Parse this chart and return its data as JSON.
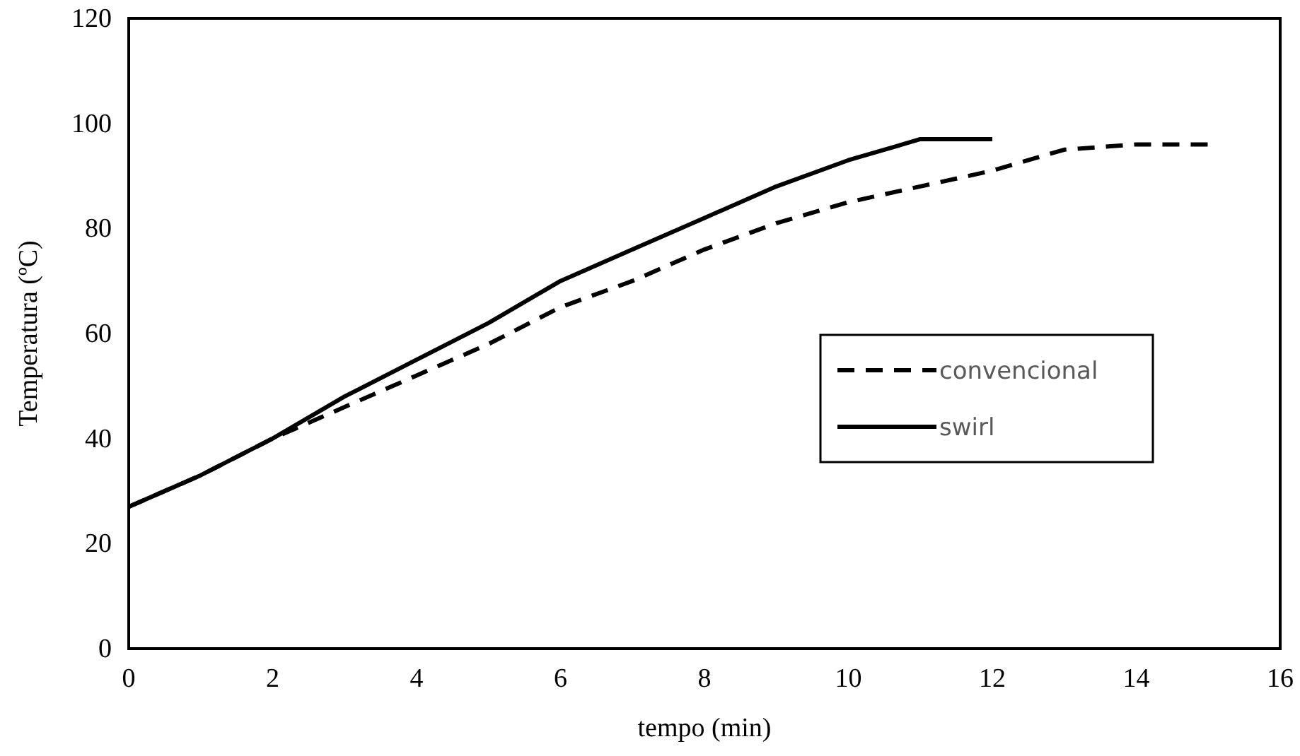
{
  "chart_data": {
    "type": "line",
    "xlabel": "tempo (min)",
    "ylabel": "Temperatura (ºC)",
    "xlim": [
      0,
      16
    ],
    "xticks": [
      0,
      2,
      4,
      6,
      8,
      10,
      12,
      14,
      16
    ],
    "ylim": [
      0,
      120
    ],
    "yticks": [
      0,
      20,
      40,
      60,
      80,
      100,
      120
    ],
    "grid": false,
    "legend": "right",
    "marker": "none",
    "series": [
      {
        "name": "convencional",
        "color": "#000000",
        "line_style": "dashed",
        "x": [
          0,
          1,
          2,
          3,
          4,
          5,
          6,
          7,
          8,
          9,
          10,
          11,
          12,
          13,
          14,
          15
        ],
        "values": [
          27,
          33,
          40,
          46,
          52,
          58,
          65,
          70,
          76,
          81,
          85,
          88,
          91,
          95,
          96,
          96
        ]
      },
      {
        "name": "swirl",
        "color": "#000000",
        "line_style": "solid",
        "x": [
          0,
          1,
          2,
          3,
          4,
          5,
          6,
          7,
          8,
          9,
          10,
          11,
          12
        ],
        "values": [
          27,
          33,
          40,
          48,
          55,
          62,
          70,
          76,
          82,
          88,
          93,
          97,
          97
        ]
      }
    ]
  }
}
